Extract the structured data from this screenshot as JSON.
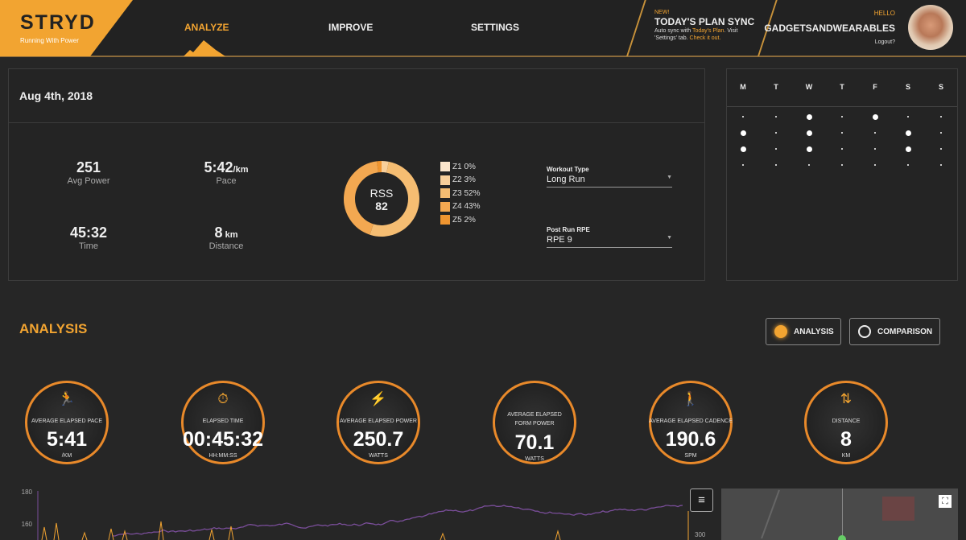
{
  "brand": {
    "logo": "STRYD",
    "tagline": "Running With Power",
    "accent": "#f2a431"
  },
  "nav": {
    "analyze": "ANALYZE",
    "improve": "IMPROVE",
    "settings": "SETTINGS"
  },
  "promo": {
    "badge": "NEW!",
    "title": "TODAY'S PLAN SYNC",
    "text1": "Auto sync with ",
    "link1": "Today's Plan",
    "text2": ". Visit 'Settings' tab. ",
    "link2": "Check it out."
  },
  "user": {
    "hello": "HELLO",
    "name": "GADGETSANDWEARABLES",
    "logout": "Logout?"
  },
  "summary": {
    "date": "Aug 4th, 2018",
    "stats": [
      {
        "value": "251",
        "unit": "",
        "label": "Avg Power"
      },
      {
        "value": "5:42",
        "unit": "/km",
        "label": "Pace"
      },
      {
        "value": "45:32",
        "unit": "",
        "label": "Time"
      },
      {
        "value": "8",
        "unit": " km",
        "label": "Distance"
      }
    ],
    "rss": {
      "label": "RSS",
      "value": "82"
    },
    "zones": [
      {
        "label": "Z1 0%",
        "pct": 0,
        "color": "#fbe6cc"
      },
      {
        "label": "Z2 3%",
        "pct": 3,
        "color": "#f8cf9a"
      },
      {
        "label": "Z3 52%",
        "pct": 52,
        "color": "#f5bd72"
      },
      {
        "label": "Z4 43%",
        "pct": 43,
        "color": "#f3a851"
      },
      {
        "label": "Z5 2%",
        "pct": 2,
        "color": "#ef9530"
      }
    ],
    "workout_type": {
      "label": "Workout Type",
      "value": "Long Run"
    },
    "rpe": {
      "label": "Post Run RPE",
      "value": "RPE 9"
    }
  },
  "calendar": {
    "days": [
      "M",
      "T",
      "W",
      "T",
      "F",
      "S",
      "S"
    ],
    "weeks": [
      [
        0,
        0,
        1,
        0,
        1,
        0,
        0
      ],
      [
        1,
        0,
        1,
        0,
        0,
        1,
        0
      ],
      [
        1,
        0,
        1,
        0,
        0,
        1,
        0
      ],
      [
        0,
        0,
        0,
        0,
        0,
        0,
        0
      ]
    ]
  },
  "analysis": {
    "title": "ANALYSIS",
    "toggle_analysis": "ANALYSIS",
    "toggle_comparison": "COMPARISON",
    "metrics": [
      {
        "icon": "run-icon",
        "glyph": "🏃",
        "label": "AVERAGE ELAPSED PACE",
        "value": "5:41",
        "unit": "/KM"
      },
      {
        "icon": "stopwatch-icon",
        "glyph": "⏱",
        "label": "ELAPSED TIME",
        "value": "00:45:32",
        "unit": "HH:MM:SS"
      },
      {
        "icon": "lightning-icon",
        "glyph": "⚡",
        "label": "AVERAGE ELAPSED POWER",
        "value": "250.7",
        "unit": "WATTS"
      },
      {
        "icon": "",
        "glyph": "",
        "label": "AVERAGE ELAPSED FORM POWER",
        "value": "70.1",
        "unit": "WATTS"
      },
      {
        "icon": "walk-icon",
        "glyph": "🚶",
        "label": "AVERAGE ELAPSED CADENCE",
        "value": "190.6",
        "unit": "SPM"
      },
      {
        "icon": "distance-icon",
        "glyph": "⇅",
        "label": "DISTANCE",
        "value": "8",
        "unit": "KM"
      }
    ]
  },
  "chart": {
    "y_left": [
      "180",
      "160"
    ],
    "y_right": [
      "300"
    ],
    "line_color": "#7a4e9a",
    "spike_color": "#f2a431"
  }
}
